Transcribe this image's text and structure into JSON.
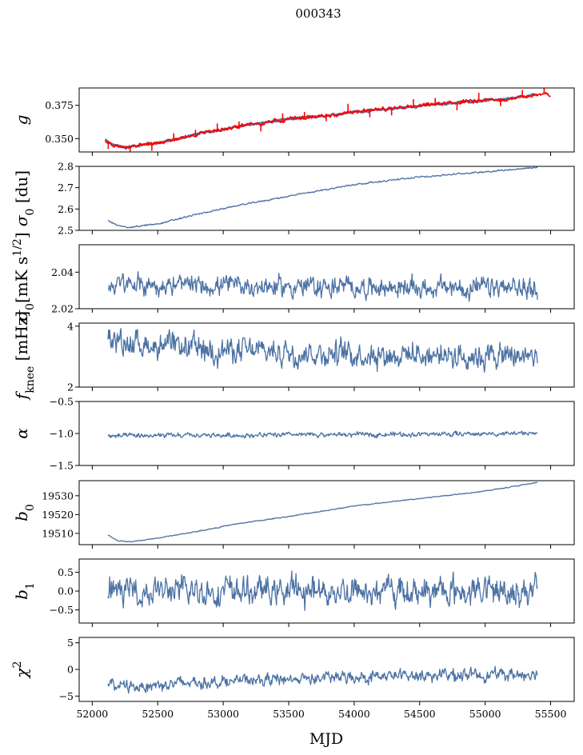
{
  "figure": {
    "suptitle": "000343",
    "xlabel": "MJD",
    "colors": {
      "series": "#4c72a4",
      "overlay": "#ff0000",
      "axes": "#000000",
      "background": "#ffffff"
    }
  },
  "chart_data": [
    {
      "type": "line",
      "ylabel": "g",
      "ylim": [
        0.34,
        0.388
      ],
      "yticks": [
        {
          "v": 0.35,
          "t": "0.350"
        },
        {
          "v": 0.375,
          "t": "0.375"
        }
      ],
      "show_xticklabels": false,
      "series": [
        {
          "color": "#4c72a4",
          "width": 2.5,
          "noise": 0.0006,
          "x": [
            52100,
            52150,
            52250,
            52400,
            52600,
            52800,
            53000,
            53200,
            53500,
            53800,
            54000,
            54300,
            54600,
            54900,
            55200,
            55400
          ],
          "y": [
            0.349,
            0.3455,
            0.3435,
            0.3455,
            0.3485,
            0.3535,
            0.357,
            0.3605,
            0.3645,
            0.3675,
            0.37,
            0.3725,
            0.3755,
            0.378,
            0.38,
            0.383
          ]
        },
        {
          "color": "#ff0000",
          "width": 1.6,
          "noise": 0.0012,
          "spikes": true,
          "x": [
            52100,
            52150,
            52250,
            52400,
            52600,
            52800,
            53000,
            53200,
            53500,
            53800,
            54000,
            54300,
            54600,
            54900,
            55200,
            55400,
            55500
          ],
          "y": [
            0.349,
            0.3455,
            0.3435,
            0.3455,
            0.3485,
            0.3535,
            0.357,
            0.3605,
            0.3645,
            0.3675,
            0.37,
            0.3725,
            0.3755,
            0.378,
            0.38,
            0.383,
            0.383
          ]
        }
      ]
    },
    {
      "type": "line",
      "ylabel": "σ0 [du]",
      "ylim": [
        2.5,
        2.8
      ],
      "yticks": [
        {
          "v": 2.5,
          "t": "2.5"
        },
        {
          "v": 2.6,
          "t": "2.6"
        },
        {
          "v": 2.7,
          "t": "2.7"
        },
        {
          "v": 2.8,
          "t": "2.8"
        }
      ],
      "show_xticklabels": false,
      "series": [
        {
          "color": "#4c72a4",
          "width": 1.3,
          "noise": 0.003,
          "x": [
            52120,
            52200,
            52300,
            52500,
            52800,
            53100,
            53500,
            54000,
            54500,
            55000,
            55400
          ],
          "y": [
            2.545,
            2.52,
            2.515,
            2.53,
            2.575,
            2.615,
            2.66,
            2.715,
            2.75,
            2.775,
            2.795
          ]
        }
      ]
    },
    {
      "type": "line",
      "ylabel": "σ0[mK s1/2]",
      "ylim": [
        2.02,
        2.055
      ],
      "yticks": [
        {
          "v": 2.02,
          "t": "2.02"
        },
        {
          "v": 2.04,
          "t": "2.04"
        }
      ],
      "show_xticklabels": false,
      "series": [
        {
          "color": "#4c72a4",
          "width": 1.3,
          "noise": 0.0045,
          "mean": 2.033,
          "x": [
            52120,
            55400
          ],
          "y": [
            2.033,
            2.031
          ]
        }
      ]
    },
    {
      "type": "line",
      "ylabel": "fknee [mHz]",
      "ylim": [
        2,
        4.1
      ],
      "yticks": [
        {
          "v": 2,
          "t": "2"
        },
        {
          "v": 4,
          "t": "4"
        }
      ],
      "show_xticklabels": false,
      "series": [
        {
          "color": "#4c72a4",
          "width": 1.3,
          "noise": 0.33,
          "x": [
            52120,
            52500,
            53000,
            54000,
            55400
          ],
          "y": [
            3.55,
            3.35,
            3.2,
            3.1,
            3.0
          ]
        }
      ]
    },
    {
      "type": "line",
      "ylabel": "α",
      "ylim": [
        -1.5,
        -0.5
      ],
      "yticks": [
        {
          "v": -1.5,
          "t": "−1.5"
        },
        {
          "v": -1.0,
          "t": "−1.0"
        },
        {
          "v": -0.5,
          "t": "−0.5"
        }
      ],
      "show_xticklabels": false,
      "series": [
        {
          "color": "#4c72a4",
          "width": 1.3,
          "noise": 0.03,
          "x": [
            52120,
            55400
          ],
          "y": [
            -1.04,
            -1.0
          ]
        }
      ]
    },
    {
      "type": "line",
      "ylabel": "b0",
      "ylim": [
        19504,
        19538
      ],
      "yticks": [
        {
          "v": 19510,
          "t": "19510"
        },
        {
          "v": 19520,
          "t": "19520"
        },
        {
          "v": 19530,
          "t": "19530"
        }
      ],
      "show_xticklabels": false,
      "series": [
        {
          "color": "#4c72a4",
          "width": 1.3,
          "noise": 0.2,
          "x": [
            52120,
            52200,
            52300,
            52500,
            52800,
            53100,
            53500,
            54000,
            54500,
            55000,
            55400
          ],
          "y": [
            19509,
            19506,
            19505.5,
            19507.5,
            19511,
            19515,
            19519,
            19524.5,
            19528.5,
            19532.5,
            19537
          ]
        }
      ]
    },
    {
      "type": "line",
      "ylabel": "b1",
      "ylim": [
        -0.85,
        0.85
      ],
      "yticks": [
        {
          "v": -0.5,
          "t": "−0.5"
        },
        {
          "v": 0.0,
          "t": "0.0"
        },
        {
          "v": 0.5,
          "t": "0.5"
        }
      ],
      "show_xticklabels": false,
      "series": [
        {
          "color": "#4c72a4",
          "width": 1.3,
          "noise": 0.3,
          "x": [
            52120,
            55400
          ],
          "y": [
            0.0,
            0.0
          ]
        }
      ]
    },
    {
      "type": "line",
      "ylabel": "χ2",
      "ylim": [
        -6,
        6
      ],
      "yticks": [
        {
          "v": -5,
          "t": "−5"
        },
        {
          "v": 0,
          "t": "0"
        },
        {
          "v": 5,
          "t": "5"
        }
      ],
      "show_xticklabels": true,
      "series": [
        {
          "color": "#4c72a4",
          "width": 1.3,
          "noise": 0.9,
          "x": [
            52120,
            52300,
            52800,
            53500,
            54500,
            55400
          ],
          "y": [
            -2.8,
            -3.2,
            -2.4,
            -1.8,
            -1.1,
            -0.9
          ]
        }
      ]
    }
  ],
  "xaxis": {
    "xlim": [
      51900,
      55680
    ],
    "ticks": [
      {
        "v": 52000,
        "t": "52000"
      },
      {
        "v": 52500,
        "t": "52500"
      },
      {
        "v": 53000,
        "t": "53000"
      },
      {
        "v": 53500,
        "t": "53500"
      },
      {
        "v": 54000,
        "t": "54000"
      },
      {
        "v": 54500,
        "t": "54500"
      },
      {
        "v": 55000,
        "t": "55000"
      },
      {
        "v": 55500,
        "t": "55500"
      }
    ]
  }
}
